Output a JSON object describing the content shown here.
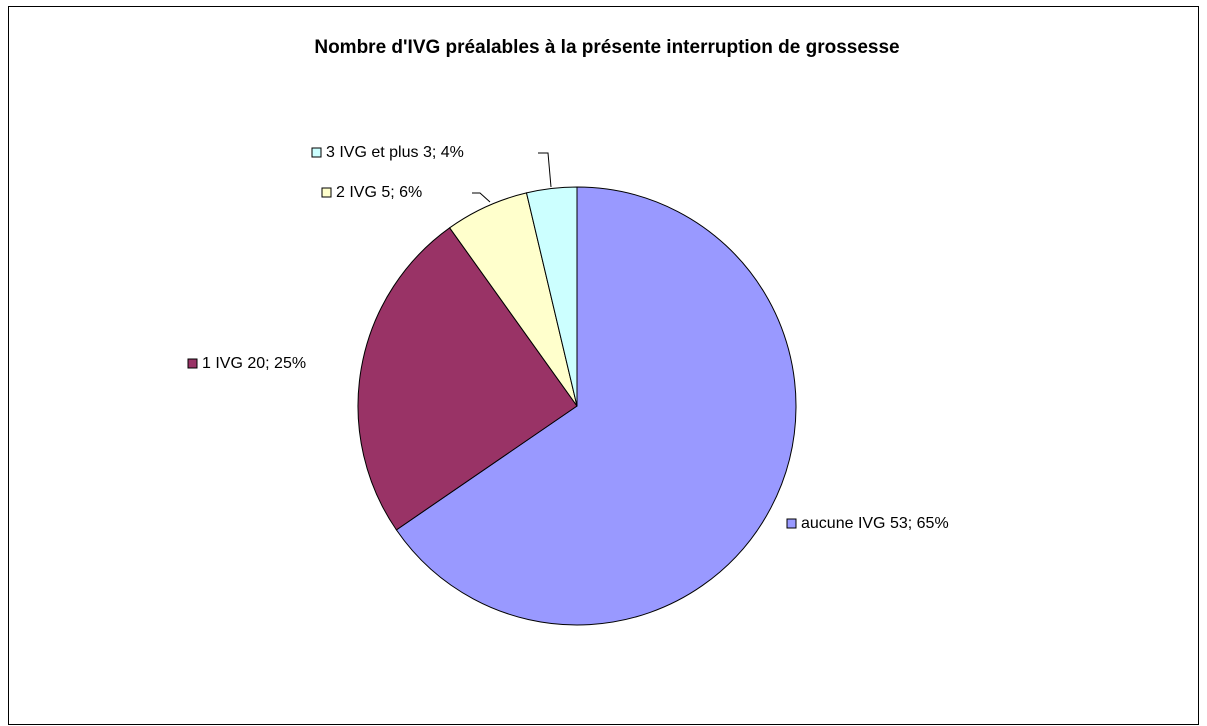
{
  "chart_data": {
    "type": "pie",
    "title": "Nombre d'IVG préalables à la présente interruption de grossesse",
    "categories": [
      "aucune IVG",
      "1 IVG",
      "2 IVG",
      "3 IVG et plus "
    ],
    "values": [
      53,
      20,
      5,
      3
    ],
    "value_labels": [
      "53; 65%",
      "20; 25%",
      "5; 6%",
      "3; 4%"
    ],
    "colors": [
      "#9999ff",
      "#993366",
      "#ffffcc",
      "#ccffff"
    ]
  }
}
